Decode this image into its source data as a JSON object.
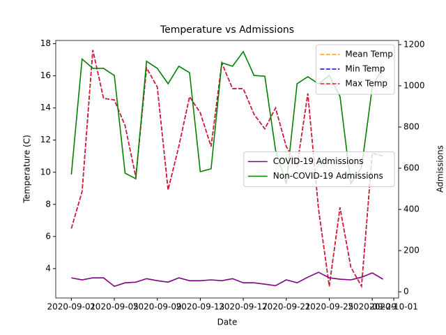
{
  "chart_data": {
    "type": "line",
    "title": "Temperature vs Admissions",
    "xlabel": "Date",
    "ylabel": "Temperature (C)",
    "y2label": "Admissions",
    "x": [
      "2020-09-01",
      "2020-09-02",
      "2020-09-03",
      "2020-09-04",
      "2020-09-05",
      "2020-09-06",
      "2020-09-07",
      "2020-09-08",
      "2020-09-09",
      "2020-09-10",
      "2020-09-11",
      "2020-09-12",
      "2020-09-13",
      "2020-09-14",
      "2020-09-15",
      "2020-09-16",
      "2020-09-17",
      "2020-09-18",
      "2020-09-19",
      "2020-09-20",
      "2020-09-21",
      "2020-09-22",
      "2020-09-23",
      "2020-09-24",
      "2020-09-25",
      "2020-09-26",
      "2020-09-27",
      "2020-09-28",
      "2020-09-29",
      "2020-09-30"
    ],
    "series": [
      {
        "name": "Mean Temp",
        "color": "orange",
        "style": "dashed",
        "values": [
          6.5,
          8.8,
          17.6,
          14.6,
          14.5,
          12.9,
          9.7,
          16.5,
          15.3,
          8.9,
          11.6,
          14.7,
          13.7,
          11.6,
          16.8,
          15.2,
          15.2,
          13.6,
          12.7,
          14.0,
          11.6,
          10.4,
          14.9,
          7.7,
          2.9,
          7.8,
          4.1,
          2.9,
          11.2,
          11.0
        ]
      },
      {
        "name": "Min Temp",
        "color": "#0000ee",
        "style": "dashed",
        "values": [
          6.5,
          8.8,
          17.6,
          14.6,
          14.5,
          12.9,
          9.7,
          16.5,
          15.3,
          8.9,
          11.6,
          14.7,
          13.7,
          11.6,
          16.8,
          15.2,
          15.2,
          13.6,
          12.7,
          14.0,
          11.6,
          10.4,
          14.9,
          7.7,
          2.9,
          7.8,
          4.1,
          2.9,
          11.2,
          11.0
        ]
      },
      {
        "name": "Max Temp",
        "color": "#dd1c2b",
        "style": "dashed",
        "values": [
          6.5,
          8.8,
          17.6,
          14.6,
          14.5,
          12.9,
          9.7,
          16.5,
          15.3,
          8.9,
          11.6,
          14.7,
          13.7,
          11.6,
          16.8,
          15.2,
          15.2,
          13.6,
          12.7,
          14.0,
          11.6,
          10.4,
          14.9,
          7.7,
          2.9,
          7.8,
          4.1,
          2.9,
          11.2,
          11.0
        ]
      },
      {
        "name": "COVID-19 Admissions",
        "color": "purple",
        "style": "solid",
        "axis": "y2",
        "values": [
          68,
          58,
          68,
          68,
          27,
          44,
          47,
          64,
          54,
          47,
          68,
          54,
          54,
          58,
          54,
          64,
          44,
          44,
          37,
          30,
          58,
          44,
          71,
          95,
          68,
          61,
          58,
          71,
          92,
          61
        ]
      },
      {
        "name": "Non-COVID-19 Admissions",
        "color": "green",
        "style": "solid",
        "axis": "y2",
        "values": [
          570,
          1130,
          1085,
          1085,
          1050,
          576,
          549,
          1119,
          1085,
          1010,
          1095,
          1064,
          583,
          597,
          1112,
          1095,
          1166,
          1050,
          1047,
          688,
          525,
          1010,
          1044,
          1010,
          1050,
          949,
          525,
          603,
          993,
          1095
        ]
      }
    ],
    "xticks": [
      "2020-09-01",
      "2020-09-05",
      "2020-09-09",
      "2020-09-13",
      "2020-09-17",
      "2020-09-21",
      "2020-09-25",
      "2020-09-29",
      "2020-10-01"
    ],
    "ylim": [
      2.17,
      18.2
    ],
    "yticks": [
      4,
      6,
      8,
      10,
      12,
      14,
      16,
      18
    ],
    "y2lim": [
      -30,
      1220
    ],
    "y2ticks": [
      0,
      200,
      400,
      600,
      800,
      1000,
      1200
    ],
    "legend": "upper right",
    "y2_legend": "center right"
  }
}
